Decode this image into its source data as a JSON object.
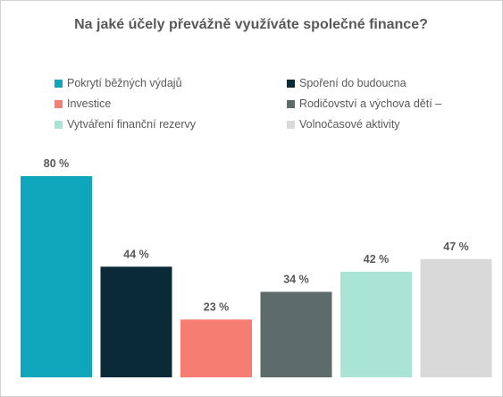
{
  "chart_data": {
    "type": "bar",
    "title": "Na jaké účely převážně využíváte společné finance?",
    "categories": [
      "Pokrytí běžných výdajů",
      "Spoření do budoucna",
      "Investice",
      "Rodičovství a výchova dětí –",
      "Vytváření finanční rezervy",
      "Volnočasové aktivity"
    ],
    "values": [
      80,
      44,
      23,
      34,
      42,
      47
    ],
    "value_labels": [
      "80 %",
      "44 %",
      "23 %",
      "34 %",
      "42 %",
      "47 %"
    ],
    "colors": [
      "#0fa6bb",
      "#0b2a38",
      "#f67d71",
      "#5e6b6b",
      "#a9e4d4",
      "#d9d9d9"
    ],
    "ylim": [
      0,
      80
    ],
    "grid": false,
    "legend_position": "top"
  }
}
